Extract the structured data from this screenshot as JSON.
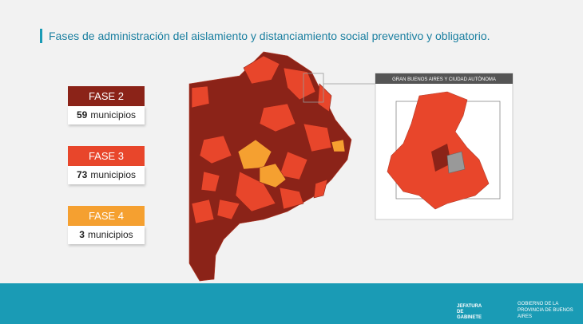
{
  "title": "Fases de administración del aislamiento y distanciamiento social preventivo y obligatorio.",
  "legend": [
    {
      "label": "FASE 2",
      "count": 59,
      "unit": "municipios"
    },
    {
      "label": "FASE 3",
      "count": 73,
      "unit": "municipios"
    },
    {
      "label": "FASE 4",
      "count": 3,
      "unit": "municipios"
    }
  ],
  "inset_title": "GRAN BUENOS AIRES Y CIUDAD AUTÓNOMA",
  "footer": {
    "left": "JEFATURA DE GABINETE",
    "right": "GOBIERNO DE LA PROVINCIA DE BUENOS AIRES"
  }
}
